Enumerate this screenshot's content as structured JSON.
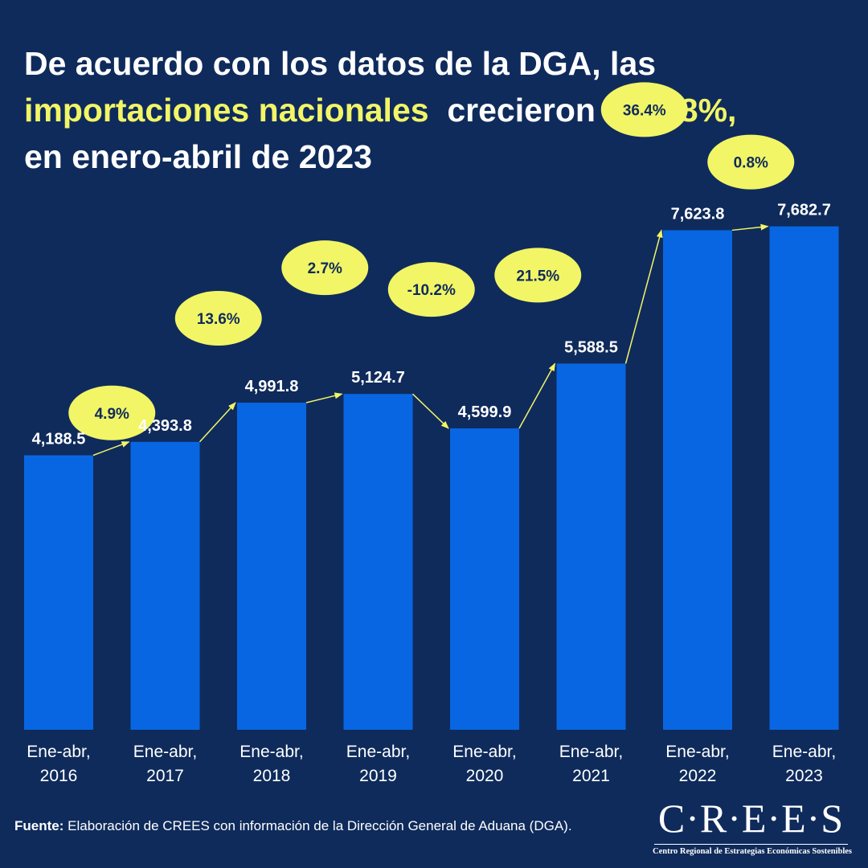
{
  "title": {
    "line1": "De acuerdo con los datos de la DGA, las",
    "highlight1": "importaciones nacionales",
    "middle": "crecieron en",
    "highlight2": "0.8%,",
    "line3": "en enero-abril de 2023"
  },
  "chart_data": {
    "type": "bar",
    "categories": [
      [
        "Ene-abr,",
        "2016"
      ],
      [
        "Ene-abr,",
        "2017"
      ],
      [
        "Ene-abr,",
        "2018"
      ],
      [
        "Ene-abr,",
        "2019"
      ],
      [
        "Ene-abr,",
        "2020"
      ],
      [
        "Ene-abr,",
        "2021"
      ],
      [
        "Ene-abr,",
        "2022"
      ],
      [
        "Ene-abr,",
        "2023"
      ]
    ],
    "values": [
      4188.5,
      4393.8,
      4991.8,
      5124.7,
      4599.9,
      5588.5,
      7623.8,
      7682.7
    ],
    "value_labels": [
      "4,188.5",
      "4,393.8",
      "4,991.8",
      "5,124.7",
      "4,599.9",
      "5,588.5",
      "7,623.8",
      "7,682.7"
    ],
    "growth_labels": [
      "4.9%",
      "13.6%",
      "2.7%",
      "-10.2%",
      "21.5%",
      "36.4%",
      "0.8%"
    ],
    "ylim": [
      0,
      8500
    ],
    "grid": false,
    "colors": {
      "background": "#0f2b5c",
      "bar": "#0866e2",
      "bubble": "#f2f566",
      "text": "#ffffff"
    }
  },
  "source": {
    "label": "Fuente:",
    "text": "Elaboración de CREES con información de la Dirección General de Aduana (DGA)."
  },
  "logo": {
    "name": "C·R·E·E·S",
    "subtitle": "Centro Regional de Estrategias Económicas Sostenibles"
  }
}
